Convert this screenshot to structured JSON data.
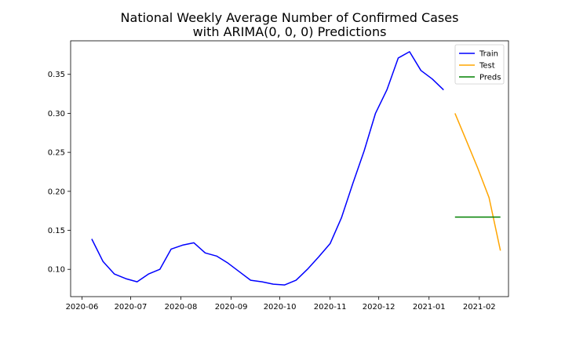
{
  "chart_data": {
    "type": "line",
    "title_lines": [
      "National Weekly Average Number of Confirmed Cases",
      "with ARIMA(0, 0, 0) Predictions"
    ],
    "xlabel": "",
    "ylabel": "",
    "x_ticks": [
      "2020-06-01",
      "2020-07-01",
      "2020-08-01",
      "2020-09-01",
      "2020-10-01",
      "2020-11-01",
      "2020-12-01",
      "2021-01-01",
      "2021-02-01"
    ],
    "x_tick_labels": [
      "2020-06",
      "2020-07",
      "2020-08",
      "2020-09",
      "2020-10",
      "2020-11",
      "2020-12",
      "2021-01",
      "2021-02"
    ],
    "xlim": [
      "2020-05-25",
      "2021-02-19"
    ],
    "y_ticks": [
      0.1,
      0.15,
      0.2,
      0.25,
      0.3,
      0.35
    ],
    "y_tick_labels": [
      "0.10",
      "0.15",
      "0.20",
      "0.25",
      "0.30",
      "0.35"
    ],
    "ylim": [
      0.065,
      0.393
    ],
    "grid": false,
    "legend_position": "top-right",
    "series": [
      {
        "name": "Train",
        "color": "#0000ff",
        "points": [
          [
            "2020-06-07",
            0.139
          ],
          [
            "2020-06-14",
            0.11
          ],
          [
            "2020-06-21",
            0.094
          ],
          [
            "2020-06-28",
            0.088
          ],
          [
            "2020-07-05",
            0.084
          ],
          [
            "2020-07-12",
            0.094
          ],
          [
            "2020-07-19",
            0.1
          ],
          [
            "2020-07-26",
            0.126
          ],
          [
            "2020-08-02",
            0.131
          ],
          [
            "2020-08-09",
            0.134
          ],
          [
            "2020-08-16",
            0.121
          ],
          [
            "2020-08-23",
            0.117
          ],
          [
            "2020-08-30",
            0.108
          ],
          [
            "2020-09-06",
            0.097
          ],
          [
            "2020-09-13",
            0.086
          ],
          [
            "2020-09-20",
            0.084
          ],
          [
            "2020-09-27",
            0.081
          ],
          [
            "2020-10-04",
            0.08
          ],
          [
            "2020-10-11",
            0.086
          ],
          [
            "2020-10-18",
            0.1
          ],
          [
            "2020-10-25",
            0.116
          ],
          [
            "2020-11-01",
            0.133
          ],
          [
            "2020-11-08",
            0.166
          ],
          [
            "2020-11-15",
            0.21
          ],
          [
            "2020-11-22",
            0.252
          ],
          [
            "2020-11-29",
            0.3
          ],
          [
            "2020-12-06",
            0.33
          ],
          [
            "2020-12-13",
            0.371
          ],
          [
            "2020-12-20",
            0.379
          ],
          [
            "2020-12-27",
            0.355
          ],
          [
            "2021-01-03",
            0.344
          ],
          [
            "2021-01-10",
            0.33
          ]
        ]
      },
      {
        "name": "Test",
        "color": "#ffa500",
        "points": [
          [
            "2021-01-17",
            0.3
          ],
          [
            "2021-01-24",
            0.265
          ],
          [
            "2021-01-31",
            0.23
          ],
          [
            "2021-02-07",
            0.192
          ],
          [
            "2021-02-14",
            0.124
          ]
        ]
      },
      {
        "name": "Preds",
        "color": "#008000",
        "points": [
          [
            "2021-01-17",
            0.167
          ],
          [
            "2021-01-24",
            0.167
          ],
          [
            "2021-01-31",
            0.167
          ],
          [
            "2021-02-07",
            0.167
          ],
          [
            "2021-02-14",
            0.167
          ]
        ]
      }
    ]
  }
}
